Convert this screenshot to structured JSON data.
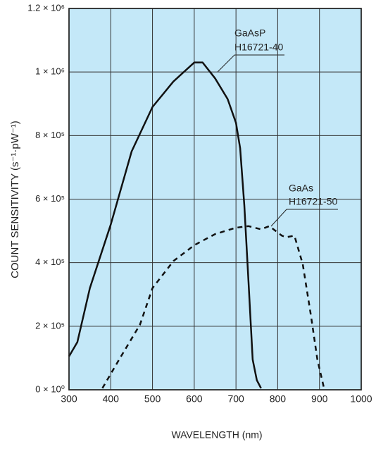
{
  "chart_data": {
    "type": "line",
    "x_label": "WAVELENGTH (nm)",
    "y_label": "COUNT SENSITIVITY (s⁻¹·pW⁻¹)",
    "xlim": [
      300,
      1000
    ],
    "xticks": [
      300,
      400,
      500,
      600,
      700,
      800,
      900,
      1000
    ],
    "ylim": [
      0,
      1200000
    ],
    "yticks": [
      {
        "value": 0,
        "label": "0 × 10⁰"
      },
      {
        "value": 200000,
        "label": "2 × 10⁵"
      },
      {
        "value": 400000,
        "label": "4 × 10⁵"
      },
      {
        "value": 600000,
        "label": "6 × 10⁵"
      },
      {
        "value": 800000,
        "label": "8 × 10⁵"
      },
      {
        "value": 1000000,
        "label": "1 × 10⁶"
      },
      {
        "value": 1200000,
        "label": "1.2 × 10⁶"
      }
    ],
    "grid": true,
    "background": "#c4e8f8",
    "series": [
      {
        "name": "GaAsP",
        "model": "H16721-40",
        "color": "#111111",
        "dash": "solid",
        "x": [
          300,
          320,
          350,
          400,
          450,
          500,
          550,
          600,
          620,
          650,
          680,
          700,
          710,
          720,
          730,
          740,
          750,
          760
        ],
        "values": [
          105000,
          150000,
          320000,
          520000,
          750000,
          890000,
          970000,
          1030000,
          1030000,
          980000,
          915000,
          840000,
          760000,
          580000,
          340000,
          95000,
          30000,
          5000
        ]
      },
      {
        "name": "GaAs",
        "model": "H16721-50",
        "color": "#111111",
        "dash": "dashed",
        "x": [
          380,
          420,
          470,
          500,
          550,
          600,
          650,
          700,
          730,
          760,
          780,
          810,
          820,
          840,
          860,
          880,
          895,
          910
        ],
        "values": [
          5000,
          95000,
          205000,
          320000,
          405000,
          455000,
          490000,
          510000,
          515000,
          505000,
          515000,
          485000,
          480000,
          485000,
          395000,
          230000,
          95000,
          10000
        ]
      }
    ]
  }
}
